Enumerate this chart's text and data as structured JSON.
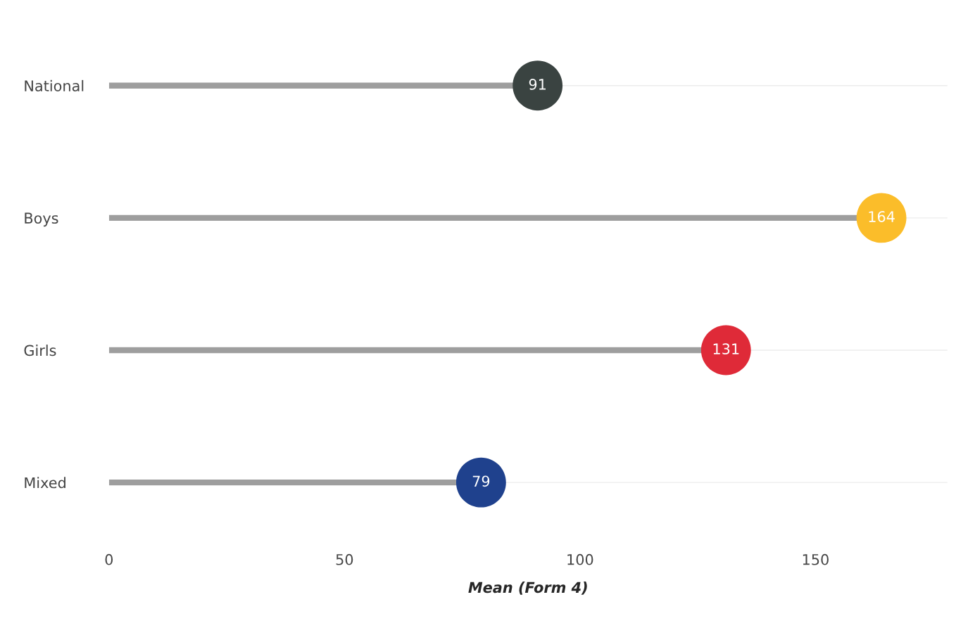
{
  "chart_data": {
    "type": "lollipop",
    "orientation": "horizontal",
    "xlabel": "Mean (Form 4)",
    "categories": [
      "National",
      "Boys",
      "Girls",
      "Mixed"
    ],
    "values": [
      91,
      164,
      131,
      79
    ],
    "colors": [
      "#3a4341",
      "#fbbd2a",
      "#df2a38",
      "#1f418d"
    ],
    "xlim": [
      0,
      178
    ],
    "xticks": [
      0,
      50,
      100,
      150
    ],
    "grid": "y",
    "data_labels": true
  }
}
